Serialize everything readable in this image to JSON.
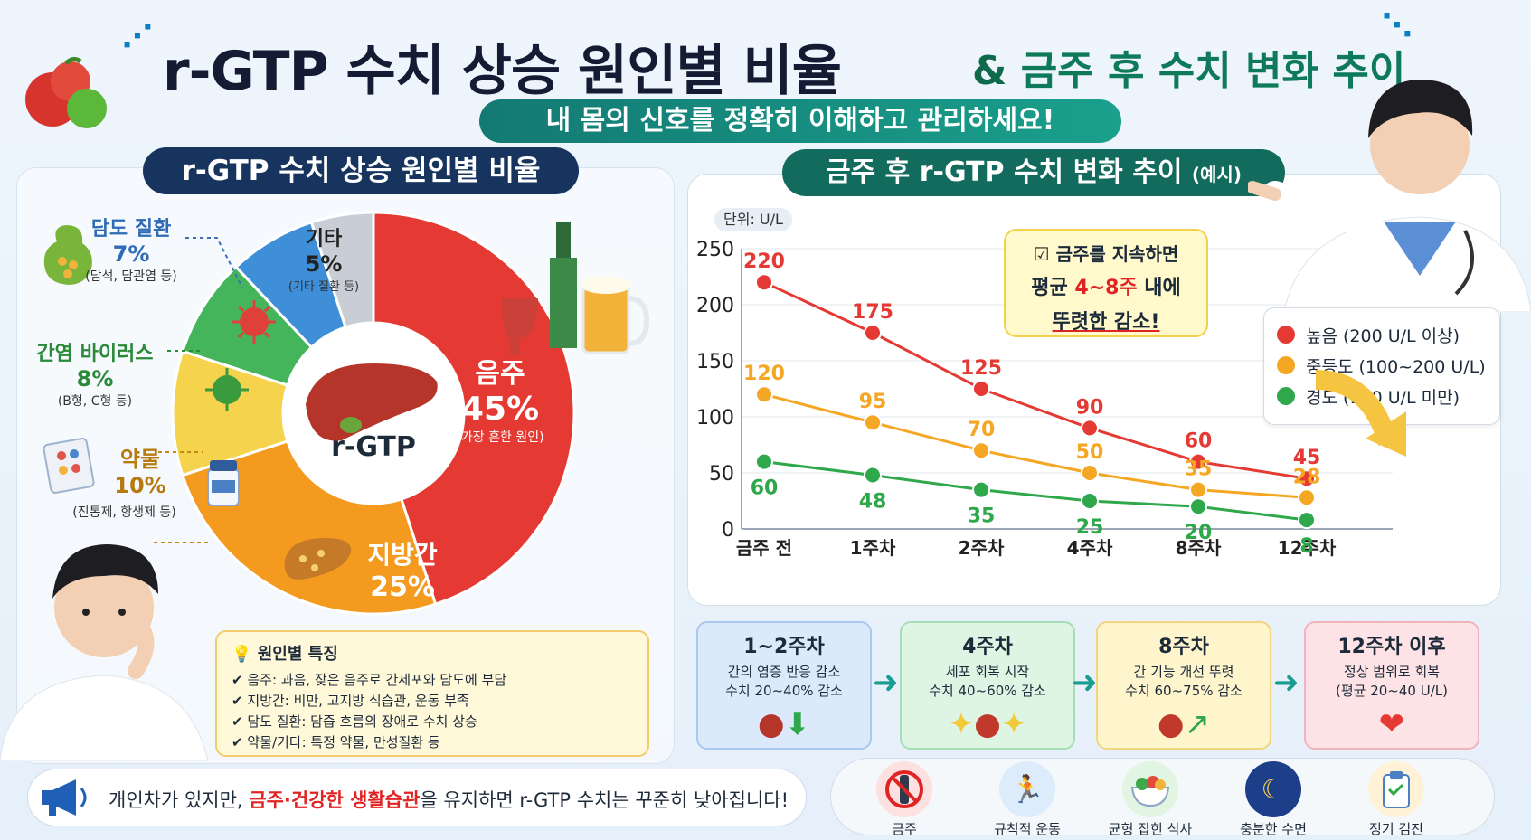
{
  "header": {
    "title": "r-GTP 수치 상승 원인별 비율",
    "title_amp": "&",
    "title_part2": "금주 후 수치 변화 추이",
    "subtitle": "내 몸의 신호를 정확히 이해하고 관리하세요!"
  },
  "left": {
    "header": "r-GTP 수치 상승 원인별 비율",
    "center_label": "r-GTP",
    "causes": [
      {
        "name": "음주",
        "pct": "45%",
        "note": "(가장 흔한 원인)",
        "value": 45,
        "color": "#e53a33"
      },
      {
        "name": "지방간",
        "pct": "25%",
        "note": "",
        "value": 25,
        "color": "#f39a1f"
      },
      {
        "name": "약물",
        "pct": "10%",
        "note": "(진통제, 항생제 등)",
        "value": 10,
        "color": "#f5d34c"
      },
      {
        "name": "간염 바이러스",
        "pct": "8%",
        "note": "(B형, C형 등)",
        "value": 8,
        "color": "#45b55c"
      },
      {
        "name": "담도 질환",
        "pct": "7%",
        "note": "(담석, 담관염 등)",
        "value": 7,
        "color": "#3e8fd8"
      },
      {
        "name": "기타",
        "pct": "5%",
        "note": "(기타 질환 등)",
        "value": 5,
        "color": "#c9ced6"
      }
    ],
    "features": {
      "title": "원인별 특징",
      "items": [
        "음주: 과음, 잦은 음주로 간세포와 담도에 부담",
        "지방간: 비만, 고지방 식습관, 운동 부족",
        "담도 질환: 담즙 흐름의 장애로 수치 상승",
        "약물/기타: 특정 약물, 만성질환 등"
      ]
    },
    "banner": {
      "before": "개인차가 있지만, ",
      "highlight": "금주·건강한 생활습관",
      "after": "을 유지하면 r-GTP 수치는 꾸준히 낮아집니다!"
    }
  },
  "right": {
    "header": "금주 후 r-GTP 수치 변화 추이",
    "header_small": "(예시)",
    "unit": "단위: U/L",
    "callout": {
      "line1": "금주를 지속하면",
      "line2_pre": "평균 ",
      "line2_hl": "4~8주",
      "line2_post": " 내에",
      "line3": "뚜렷한 감소!"
    },
    "legend": [
      {
        "label": "높음 (200 U/L 이상)",
        "color": "#e53a33"
      },
      {
        "label": "중등도 (100~200 U/L)",
        "color": "#f5a623"
      },
      {
        "label": "경도 (100 U/L 미만)",
        "color": "#2ea84a"
      }
    ],
    "stages": [
      {
        "title": "1~2주차",
        "line1": "간의 염증 반응 감소",
        "line2": "수치 20~40% 감소",
        "bg": "#dbe9fb",
        "border": "#a9c8ef"
      },
      {
        "title": "4주차",
        "line1": "세포 회복 시작",
        "line2": "수치 40~60% 감소",
        "bg": "#dff5e4",
        "border": "#a8dcb4"
      },
      {
        "title": "8주차",
        "line1": "간 기능 개선 뚜렷",
        "line2": "수치 60~75% 감소",
        "bg": "#fff5cc",
        "border": "#f0d680"
      },
      {
        "title": "12주차 이후",
        "line1": "정상 범위로 회복",
        "line2": "(평균 20~40 U/L)",
        "bg": "#fde3e6",
        "border": "#f2b3bb"
      }
    ],
    "lifestyle": [
      {
        "label": "금주",
        "icon": "no-alcohol-icon",
        "bg": "#fde0e0"
      },
      {
        "label": "규칙적 운동",
        "icon": "running-icon",
        "bg": "#dcecfb"
      },
      {
        "label": "균형 잡힌 식사",
        "icon": "salad-icon",
        "bg": "#e2f4e2"
      },
      {
        "label": "충분한 수면",
        "icon": "moon-icon",
        "bg": "#1d3f8a"
      },
      {
        "label": "정기 검진",
        "icon": "checkup-icon",
        "bg": "#fff2d6"
      }
    ]
  },
  "chart_data": {
    "type": "line",
    "categories": [
      "금주 전",
      "1주차",
      "2주차",
      "4주차",
      "8주차",
      "12주차"
    ],
    "ylim": [
      0,
      250
    ],
    "yticks": [
      "0",
      "50",
      "100",
      "150",
      "200",
      "250"
    ],
    "series": [
      {
        "name": "높음 (200 U/L 이상)",
        "color": "#e53a33",
        "values": [
          220,
          175,
          125,
          90,
          60,
          45
        ],
        "labels": [
          "220",
          "175",
          "125",
          "90",
          "60",
          "45"
        ]
      },
      {
        "name": "중등도 (100~200 U/L)",
        "color": "#f5a623",
        "values": [
          120,
          95,
          70,
          50,
          35,
          28
        ],
        "labels": [
          "120",
          "95",
          "70",
          "50",
          "35",
          "28"
        ]
      },
      {
        "name": "경도 (100 U/L 미만)",
        "color": "#2ea84a",
        "values": [
          60,
          48,
          35,
          25,
          20,
          8
        ],
        "labels": [
          "60",
          "48",
          "35",
          "25",
          "20",
          "8"
        ]
      }
    ]
  }
}
